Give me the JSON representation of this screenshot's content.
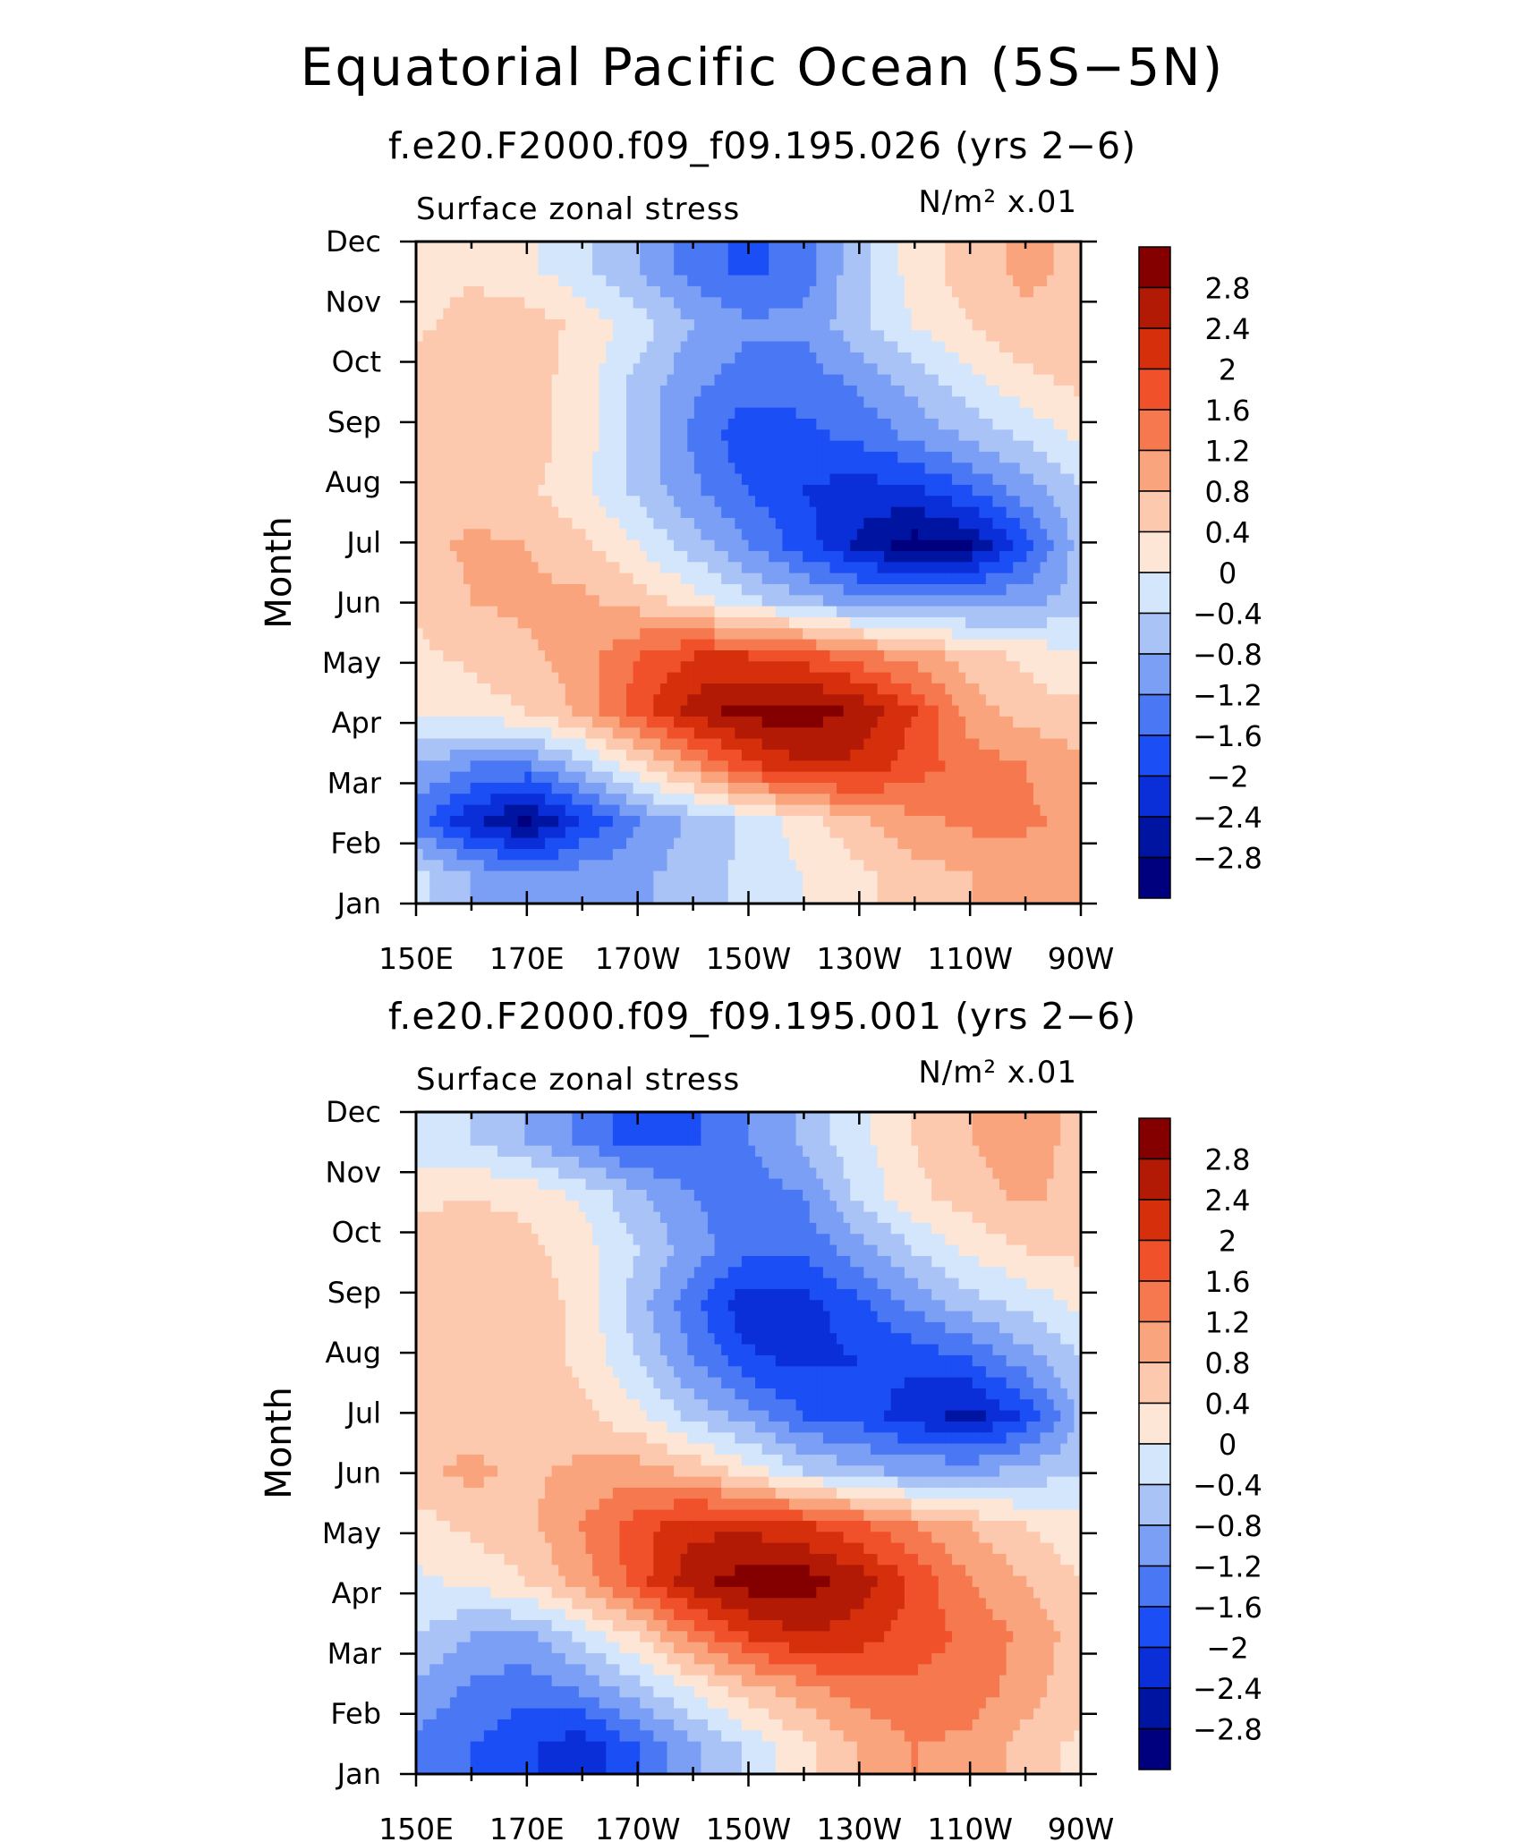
{
  "figure_title": "Equatorial Pacific Ocean (5S−5N)",
  "levels": [
    -2.8,
    -2.4,
    -2.0,
    -1.6,
    -1.2,
    -0.8,
    -0.4,
    0,
    0.4,
    0.8,
    1.2,
    1.6,
    2.0,
    2.4,
    2.8
  ],
  "colors": [
    "#00007f",
    "#0014a2",
    "#0a2fd8",
    "#1b4ef5",
    "#4a78f5",
    "#7a9ff5",
    "#a9c3f7",
    "#d4e6fb",
    "#fde6d6",
    "#fcc9ae",
    "#f9a47c",
    "#f6784f",
    "#f0512a",
    "#d62f0c",
    "#b21a06",
    "#840000"
  ],
  "chart_data": [
    {
      "type": "heatmap",
      "title": "f.e20.F2000.f09_f09.195.026 (yrs 2−6)",
      "left_label": "Surface zonal stress",
      "units_label": "N/m² x.01",
      "ylabel": "Month",
      "x_ticks": [
        "150E",
        "170E",
        "170W",
        "150W",
        "130W",
        "110W",
        "90W"
      ],
      "y_ticks": [
        "Jan",
        "Feb",
        "Mar",
        "Apr",
        "May",
        "Jun",
        "Jul",
        "Aug",
        "Sep",
        "Oct",
        "Nov",
        "Dec"
      ],
      "colorbar_labels": [
        "2.8",
        "2.4",
        "2",
        "1.6",
        "1.2",
        "0.8",
        "0.4",
        "0",
        "−0.4",
        "−0.8",
        "−1.2",
        "−1.6",
        "−2",
        "−2.4",
        "−2.8"
      ],
      "x_values_deg_east": [
        150,
        160,
        170,
        180,
        190,
        200,
        210,
        220,
        230,
        240,
        250,
        260,
        270
      ],
      "grid": [
        [
          -0.3,
          -0.8,
          -1.2,
          -1.0,
          -0.9,
          -0.6,
          -0.3,
          0.0,
          0.3,
          0.6,
          0.8,
          0.9,
          0.8
        ],
        [
          -1.4,
          -2.3,
          -2.9,
          -2.0,
          -1.2,
          -0.7,
          -0.3,
          0.2,
          0.7,
          1.1,
          1.3,
          1.3,
          1.0
        ],
        [
          -0.8,
          -1.2,
          -1.3,
          -0.6,
          0.3,
          1.1,
          1.9,
          2.4,
          2.3,
          1.8,
          1.4,
          1.2,
          0.9
        ],
        [
          0.0,
          0.2,
          0.4,
          0.9,
          1.8,
          2.6,
          3.0,
          3.0,
          2.7,
          2.0,
          1.0,
          0.6,
          0.5
        ],
        [
          0.3,
          0.5,
          0.7,
          1.0,
          1.6,
          2.0,
          2.0,
          1.8,
          1.4,
          1.0,
          0.6,
          0.3,
          0.0
        ],
        [
          0.5,
          0.8,
          0.9,
          0.9,
          0.6,
          0.2,
          -0.3,
          -0.7,
          -1.0,
          -1.1,
          -1.1,
          -0.9,
          -0.6
        ],
        [
          0.6,
          0.9,
          0.8,
          0.5,
          0.0,
          -0.6,
          -1.2,
          -1.8,
          -2.5,
          -3.0,
          -2.8,
          -1.8,
          -0.6
        ],
        [
          0.5,
          0.6,
          0.5,
          0.1,
          -0.5,
          -1.1,
          -1.6,
          -2.0,
          -2.2,
          -2.1,
          -1.6,
          -1.0,
          -0.4
        ],
        [
          0.6,
          0.7,
          0.6,
          0.2,
          -0.5,
          -1.3,
          -1.9,
          -1.7,
          -1.5,
          -1.1,
          -0.7,
          -0.3,
          0.1
        ],
        [
          0.6,
          0.7,
          0.6,
          0.2,
          -0.5,
          -1.1,
          -1.4,
          -1.4,
          -1.1,
          -0.6,
          -0.1,
          0.3,
          0.5
        ],
        [
          0.3,
          0.6,
          0.6,
          0.3,
          -0.2,
          -0.8,
          -1.1,
          -1.1,
          -0.5,
          0.0,
          0.4,
          0.7,
          0.6
        ],
        [
          0.2,
          0.3,
          0.1,
          -0.3,
          -0.8,
          -1.4,
          -1.7,
          -1.4,
          -0.5,
          0.2,
          0.6,
          0.9,
          0.7
        ]
      ]
    },
    {
      "type": "heatmap",
      "title": "f.e20.F2000.f09_f09.195.001 (yrs 2−6)",
      "left_label": "Surface zonal stress",
      "units_label": "N/m² x.01",
      "ylabel": "Month",
      "x_ticks": [
        "150E",
        "170E",
        "170W",
        "150W",
        "130W",
        "110W",
        "90W"
      ],
      "y_ticks": [
        "Jan",
        "Feb",
        "Mar",
        "Apr",
        "May",
        "Jun",
        "Jul",
        "Aug",
        "Sep",
        "Oct",
        "Nov",
        "Dec"
      ],
      "colorbar_labels": [
        "2.8",
        "2.4",
        "2",
        "1.6",
        "1.2",
        "0.8",
        "0.4",
        "0",
        "−0.4",
        "−0.8",
        "−1.2",
        "−1.6",
        "−2",
        "−2.4",
        "−2.8"
      ],
      "x_values_deg_east": [
        150,
        160,
        170,
        180,
        190,
        200,
        210,
        220,
        230,
        240,
        250,
        260,
        270
      ],
      "grid": [
        [
          -1.3,
          -1.6,
          -1.9,
          -2.3,
          -1.6,
          -0.9,
          -0.3,
          0.3,
          0.8,
          1.2,
          1.1,
          0.6,
          0.3
        ],
        [
          -0.9,
          -1.3,
          -1.5,
          -1.2,
          -0.6,
          0.0,
          0.6,
          1.0,
          1.4,
          1.5,
          1.4,
          1.0,
          0.5
        ],
        [
          -0.4,
          -0.8,
          -0.9,
          -0.3,
          0.4,
          1.3,
          2.0,
          2.4,
          2.2,
          1.8,
          1.5,
          1.1,
          0.6
        ],
        [
          -0.1,
          0.1,
          0.4,
          1.0,
          1.8,
          2.7,
          3.0,
          3.0,
          2.6,
          1.9,
          1.2,
          0.8,
          0.4
        ],
        [
          0.2,
          0.5,
          0.7,
          1.2,
          1.8,
          2.3,
          2.3,
          2.1,
          1.7,
          1.2,
          0.8,
          0.4,
          0.1
        ],
        [
          0.7,
          0.9,
          0.7,
          0.9,
          1.0,
          0.7,
          0.2,
          -0.4,
          -0.7,
          -0.9,
          -0.9,
          -0.7,
          -0.4
        ],
        [
          0.5,
          0.6,
          0.6,
          0.5,
          0.1,
          -0.5,
          -1.0,
          -1.6,
          -1.8,
          -2.2,
          -2.6,
          -1.9,
          -0.7
        ],
        [
          0.5,
          0.6,
          0.6,
          0.3,
          -0.4,
          -1.2,
          -1.9,
          -2.1,
          -2.0,
          -1.9,
          -1.6,
          -1.0,
          -0.4
        ],
        [
          0.6,
          0.6,
          0.6,
          0.3,
          -0.6,
          -1.5,
          -2.3,
          -2.2,
          -1.7,
          -1.1,
          -0.6,
          -0.3,
          0.1
        ],
        [
          0.6,
          0.6,
          0.5,
          0.2,
          -0.4,
          -1.0,
          -1.5,
          -1.5,
          -1.0,
          -0.4,
          0.1,
          0.4,
          0.5
        ],
        [
          0.3,
          0.4,
          0.3,
          -0.1,
          -0.7,
          -1.2,
          -1.4,
          -1.2,
          -0.3,
          0.3,
          0.6,
          0.9,
          0.6
        ],
        [
          -0.3,
          -0.4,
          -0.8,
          -1.3,
          -1.8,
          -1.7,
          -1.2,
          -0.7,
          -0.1,
          0.4,
          0.8,
          1.1,
          0.6
        ]
      ]
    }
  ]
}
